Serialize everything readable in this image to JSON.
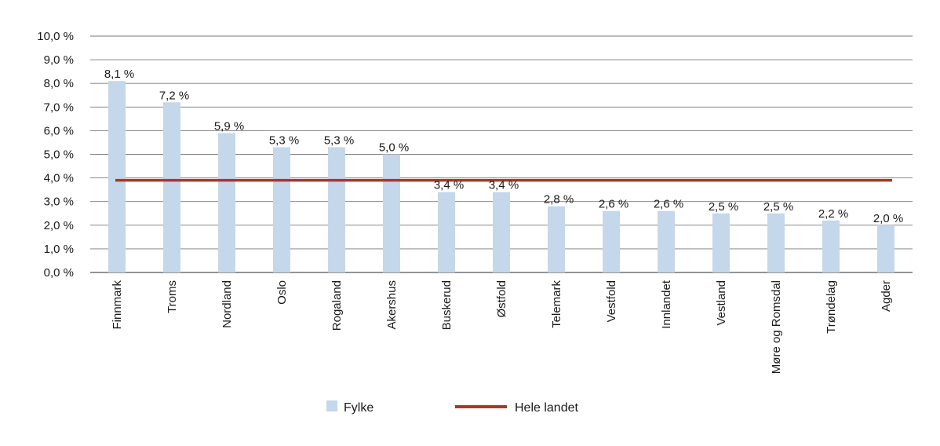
{
  "chart_data": {
    "type": "bar",
    "categories": [
      "Finnmark",
      "Troms",
      "Nordland",
      "Oslo",
      "Rogaland",
      "Akershus",
      "Buskerud",
      "Østfold",
      "Telemark",
      "Vestfold",
      "Innlandet",
      "Vestland",
      "Møre og Romsdal",
      "Trøndelag",
      "Agder"
    ],
    "series": [
      {
        "name": "Fylke",
        "type": "bar",
        "color": "#c5d7ea",
        "values": [
          8.1,
          7.2,
          5.9,
          5.3,
          5.3,
          5.0,
          3.4,
          3.4,
          2.8,
          2.6,
          2.6,
          2.5,
          2.5,
          2.2,
          2.0
        ],
        "data_labels": [
          "8,1 %",
          "7,2 %",
          "5,9 %",
          "5,3 %",
          "5,3 %",
          "5,0 %",
          "3,4 %",
          "3,4 %",
          "2,8 %",
          "2,6 %",
          "2,6 %",
          "2,5 %",
          "2,5 %",
          "2,2 %",
          "2,0 %"
        ]
      },
      {
        "name": "Hele landet",
        "type": "line",
        "color": "#a8382b",
        "value": 3.9
      }
    ],
    "y_ticks": [
      "0,0 %",
      "1,0 %",
      "2,0 %",
      "3,0 %",
      "4,0 %",
      "5,0 %",
      "6,0 %",
      "7,0 %",
      "8,0 %",
      "9,0 %",
      "10,0 %"
    ],
    "ylim": [
      0,
      10
    ],
    "grid": true,
    "legend_position": "bottom",
    "gridline_color": "#7a7a7a"
  }
}
